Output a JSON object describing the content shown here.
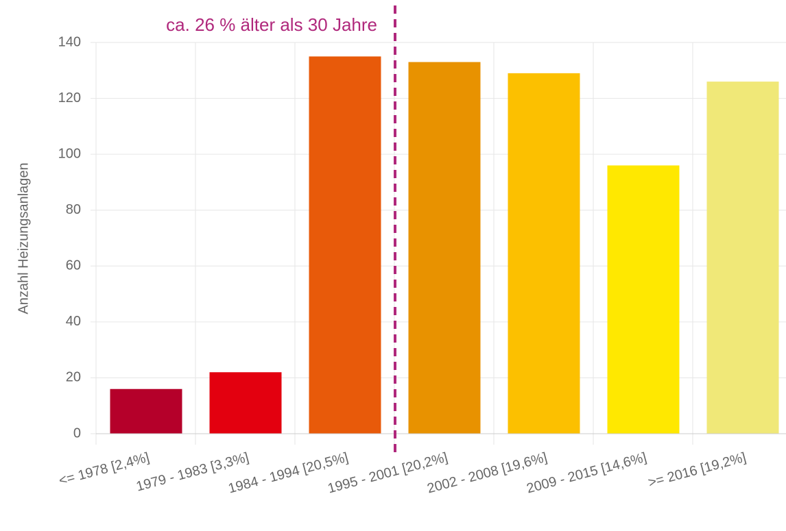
{
  "chart_data": {
    "type": "bar",
    "y_label": "Anzahl Heizungsanlagen",
    "annotation": "ca. 26 % älter als 30 Jahre",
    "categories": [
      "<= 1978 [2,4%]",
      "1979 - 1983 [3,3%]",
      "1984 - 1994 [20,5%]",
      "1995 - 2001 [20,2%]",
      "2002 - 2008 [19,6%]",
      "2009 - 2015 [14,6%]",
      ">= 2016 [19,2%]"
    ],
    "values": [
      16,
      22,
      135,
      133,
      129,
      96,
      126
    ],
    "colors": [
      "#b5002a",
      "#e3000f",
      "#e85a0a",
      "#e89200",
      "#fcc000",
      "#ffe800",
      "#f0e878"
    ],
    "annotation_color": "#b0287c",
    "ylim": [
      0,
      140
    ],
    "yticks": [
      0,
      20,
      40,
      60,
      80,
      100,
      120,
      140
    ],
    "grid": true
  }
}
